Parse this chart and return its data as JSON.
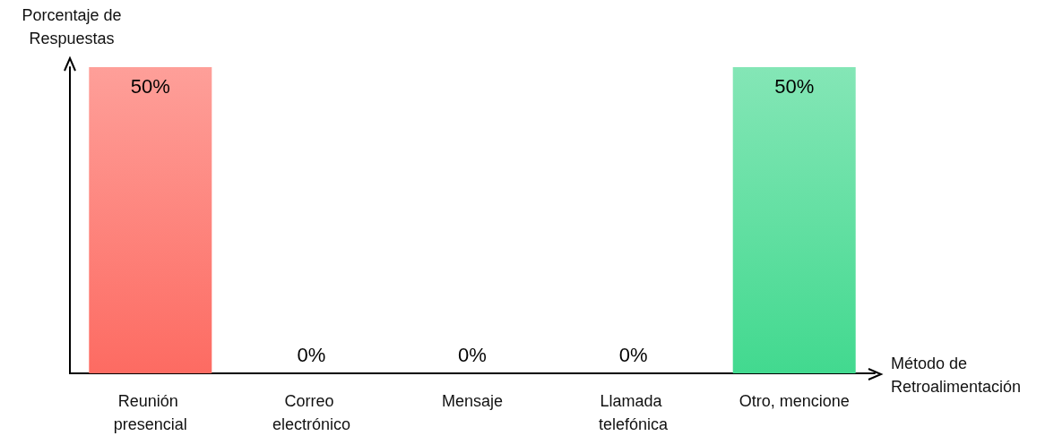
{
  "chart_data": {
    "type": "bar",
    "xlabel": "Método de Retroalimentación",
    "ylabel": "Porcentaje de Respuestas",
    "categories": [
      "Reunión presencial",
      "Correo electrónico",
      "Mensaje",
      "Llamada telefónica",
      "Otro, mencione"
    ],
    "values": [
      50,
      0,
      0,
      0,
      50
    ],
    "value_labels": [
      "50%",
      "0%",
      "0%",
      "0%",
      "50%"
    ],
    "colors": [
      "#fd6b62",
      "#9e9e9e",
      "#9e9e9e",
      "#9e9e9e",
      "#42d98f"
    ],
    "grid": false
  }
}
